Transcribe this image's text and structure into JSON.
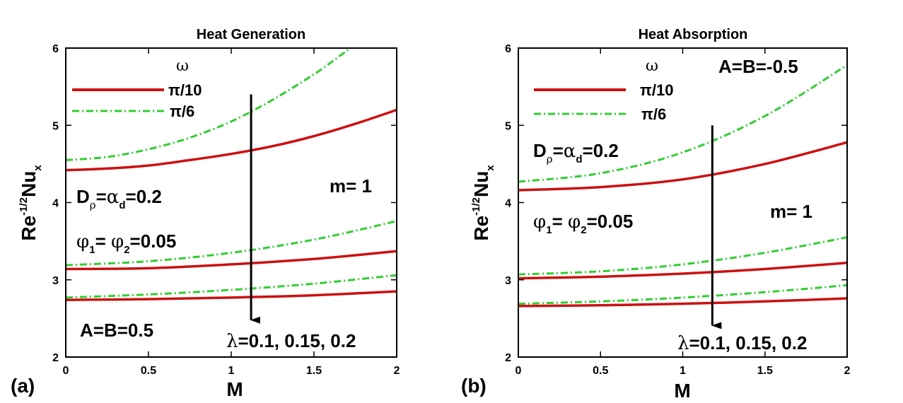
{
  "chart_data": [
    {
      "type": "line",
      "panel_label": "(a)",
      "title": "Heat Generation",
      "xlabel": "M",
      "ylabel": {
        "base": "Re",
        "exponent": "-1/2",
        "main": "Nu",
        "subscript": "x"
      },
      "xlim": [
        0,
        2
      ],
      "ylim": [
        2,
        6
      ],
      "xticks": [
        "0",
        "0.5",
        "1",
        "1.5",
        "2"
      ],
      "yticks": [
        "2",
        "3",
        "4",
        "5",
        "6"
      ],
      "legend": {
        "title": "ω",
        "entries": [
          {
            "label": "π/10",
            "color": "#cc1111",
            "style": "solid"
          },
          {
            "label": "π/6",
            "color": "#33cc33",
            "style": "dashdot"
          }
        ]
      },
      "series": [
        {
          "name": "π/10, λ=0.1",
          "color": "#cc1111",
          "style": "solid",
          "x": [
            0,
            0.25,
            0.5,
            0.75,
            1,
            1.25,
            1.5,
            1.75,
            2
          ],
          "y": [
            4.42,
            4.44,
            4.48,
            4.55,
            4.63,
            4.73,
            4.86,
            5.02,
            5.2
          ]
        },
        {
          "name": "π/6, λ=0.1",
          "color": "#33cc33",
          "style": "dashdot",
          "x": [
            0,
            0.25,
            0.5,
            0.75,
            1,
            1.25,
            1.5,
            1.625,
            1.72
          ],
          "y": [
            4.55,
            4.59,
            4.69,
            4.84,
            5.05,
            5.33,
            5.66,
            5.85,
            6.0
          ]
        },
        {
          "name": "π/10, λ=0.15",
          "color": "#cc1111",
          "style": "solid",
          "x": [
            0,
            0.5,
            1,
            1.5,
            2
          ],
          "y": [
            3.14,
            3.15,
            3.2,
            3.27,
            3.37
          ]
        },
        {
          "name": "π/6, λ=0.15",
          "color": "#33cc33",
          "style": "dashdot",
          "x": [
            0,
            0.5,
            1,
            1.5,
            2
          ],
          "y": [
            3.19,
            3.24,
            3.35,
            3.52,
            3.76
          ]
        },
        {
          "name": "π/10, λ=0.2",
          "color": "#cc1111",
          "style": "solid",
          "x": [
            0,
            0.5,
            1,
            1.5,
            2
          ],
          "y": [
            2.74,
            2.75,
            2.77,
            2.8,
            2.85
          ]
        },
        {
          "name": "π/6, λ=0.2",
          "color": "#33cc33",
          "style": "dashdot",
          "x": [
            0,
            0.5,
            1,
            1.5,
            2
          ],
          "y": [
            2.77,
            2.81,
            2.87,
            2.95,
            3.06
          ]
        }
      ],
      "arrow": {
        "x": 1.12,
        "y_start": 5.4,
        "y_end": 2.35
      },
      "annotations": {
        "m": "m= 1",
        "D_rho": {
          "D": "D",
          "rho": "ρ",
          "eq": "=",
          "alpha": "α",
          "d": "d",
          "value": "=0.2"
        },
        "phi": {
          "phi": "φ",
          "one": "1",
          "mid": "= ",
          "two": "2",
          "value": "=0.05"
        },
        "ab": "A=B=0.5",
        "lambda": {
          "symbol": "λ",
          "values": "=0.1, 0.15, 0.2"
        }
      }
    },
    {
      "type": "line",
      "panel_label": "(b)",
      "title": "Heat Absorption",
      "xlabel": "M",
      "ylabel": {
        "base": "Re",
        "exponent": "-1/2",
        "main": "Nu",
        "subscript": "x"
      },
      "xlim": [
        0,
        2
      ],
      "ylim": [
        2,
        6
      ],
      "xticks": [
        "0",
        "0.5",
        "1",
        "1.5",
        "2"
      ],
      "yticks": [
        "2",
        "3",
        "4",
        "5",
        "6"
      ],
      "legend": {
        "title": "ω",
        "entries": [
          {
            "label": "π/10",
            "color": "#cc1111",
            "style": "solid"
          },
          {
            "label": "π/6",
            "color": "#33cc33",
            "style": "dashdot"
          }
        ]
      },
      "series": [
        {
          "name": "π/10, λ=0.1",
          "color": "#cc1111",
          "style": "solid",
          "x": [
            0,
            0.5,
            1,
            1.5,
            2
          ],
          "y": [
            4.16,
            4.2,
            4.3,
            4.5,
            4.78
          ]
        },
        {
          "name": "π/6, λ=0.1",
          "color": "#33cc33",
          "style": "dashdot",
          "x": [
            0,
            0.5,
            1,
            1.5,
            2
          ],
          "y": [
            4.27,
            4.38,
            4.65,
            5.12,
            5.78
          ]
        },
        {
          "name": "π/10, λ=0.15",
          "color": "#cc1111",
          "style": "solid",
          "x": [
            0,
            0.5,
            1,
            1.5,
            2
          ],
          "y": [
            3.02,
            3.04,
            3.08,
            3.14,
            3.22
          ]
        },
        {
          "name": "π/6, λ=0.15",
          "color": "#33cc33",
          "style": "dashdot",
          "x": [
            0,
            0.5,
            1,
            1.5,
            2
          ],
          "y": [
            3.07,
            3.11,
            3.2,
            3.35,
            3.55
          ]
        },
        {
          "name": "π/10, λ=0.2",
          "color": "#cc1111",
          "style": "solid",
          "x": [
            0,
            0.5,
            1,
            1.5,
            2
          ],
          "y": [
            2.66,
            2.67,
            2.69,
            2.72,
            2.76
          ]
        },
        {
          "name": "π/6, λ=0.2",
          "color": "#33cc33",
          "style": "dashdot",
          "x": [
            0,
            0.5,
            1,
            1.5,
            2
          ],
          "y": [
            2.69,
            2.72,
            2.77,
            2.84,
            2.93
          ]
        }
      ],
      "arrow": {
        "x": 1.18,
        "y_start": 5.0,
        "y_end": 2.28
      },
      "annotations": {
        "ab": "A=B=-0.5",
        "m": "m= 1",
        "D_rho": {
          "D": "D",
          "rho": "ρ",
          "eq": "=",
          "alpha": "α",
          "d": "d",
          "value": "=0.2"
        },
        "phi": {
          "phi": "φ",
          "one": "1",
          "mid": "= ",
          "two": "2",
          "value": "=0.05"
        },
        "lambda": {
          "symbol": "λ",
          "values": "=0.1, 0.15, 0.2"
        }
      }
    }
  ]
}
